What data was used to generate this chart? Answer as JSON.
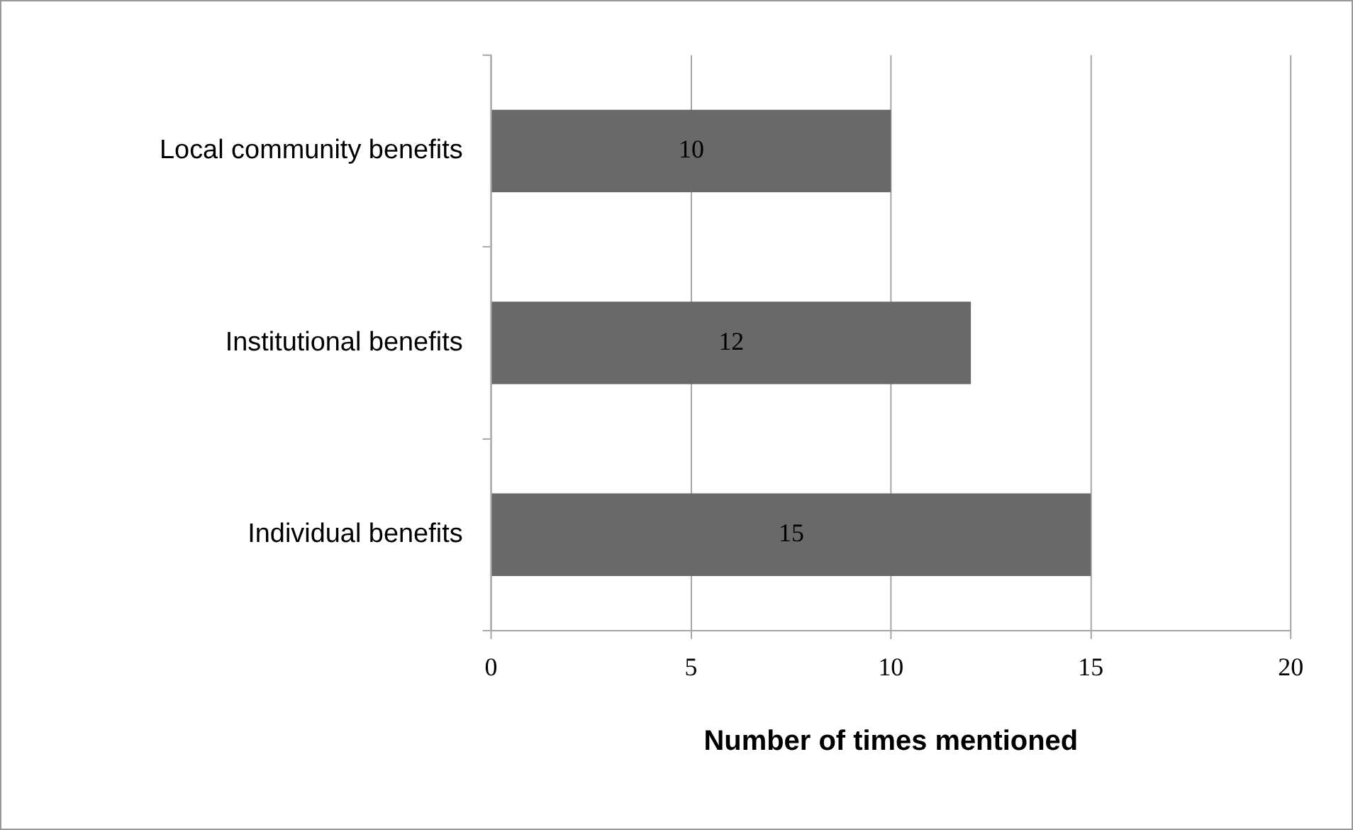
{
  "chart_data": {
    "type": "bar",
    "orientation": "horizontal",
    "xlabel": "Number of times mentioned",
    "categories": [
      "Local community benefits",
      "Institutional benefits",
      "Individual benefits"
    ],
    "values": [
      10,
      12,
      15
    ],
    "color": "#696969",
    "xlim": [
      0,
      20
    ],
    "xticks": [
      0,
      5,
      10,
      15,
      20
    ],
    "grid": "x",
    "legend": false,
    "data_labels": true
  }
}
